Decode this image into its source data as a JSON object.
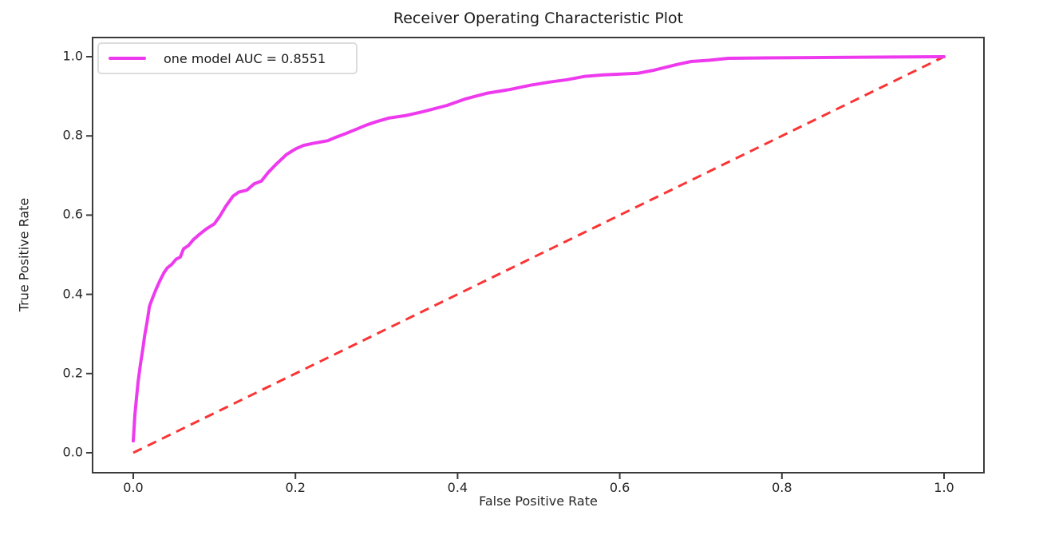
{
  "title": "Receiver Operating Characteristic Plot",
  "axes": {
    "xlabel": "False Positive Rate",
    "ylabel": "True Positive Rate",
    "xticks": {
      "values": [
        0.0,
        0.2,
        0.4,
        0.6,
        0.8,
        1.0
      ],
      "labels": [
        "0.0",
        "0.2",
        "0.4",
        "0.6",
        "0.8",
        "1.0"
      ]
    },
    "yticks": {
      "values": [
        0.0,
        0.2,
        0.4,
        0.6,
        0.8,
        1.0
      ],
      "labels": [
        "0.0",
        "0.2",
        "0.4",
        "0.6",
        "0.8",
        "1.0"
      ]
    }
  },
  "legend": {
    "label": "one model AUC = 0.8551",
    "position": "upper left"
  },
  "colors": {
    "roc_line": "#ee3aee",
    "chance_line": "#fa3434",
    "spine": "#3b3b3b",
    "text": "#262626",
    "background": "#ffffff"
  },
  "chart_data": {
    "type": "line",
    "title": "Receiver Operating Characteristic Plot",
    "xlabel": "False Positive Rate",
    "ylabel": "True Positive Rate",
    "xlim": [
      0.0,
      1.0
    ],
    "ylim": [
      0.0,
      1.0
    ],
    "grid": false,
    "legend_position": "upper left",
    "auc": 0.8551,
    "series": [
      {
        "name": "one model AUC = 0.8551",
        "color": "#ee3aee",
        "style": "solid",
        "line_width": 4,
        "points": [
          [
            0.0,
            0.03
          ],
          [
            0.001,
            0.062
          ],
          [
            0.002,
            0.095
          ],
          [
            0.004,
            0.14
          ],
          [
            0.006,
            0.18
          ],
          [
            0.009,
            0.225
          ],
          [
            0.012,
            0.265
          ],
          [
            0.014,
            0.295
          ],
          [
            0.017,
            0.33
          ],
          [
            0.02,
            0.37
          ],
          [
            0.024,
            0.392
          ],
          [
            0.028,
            0.412
          ],
          [
            0.033,
            0.435
          ],
          [
            0.038,
            0.455
          ],
          [
            0.042,
            0.467
          ],
          [
            0.047,
            0.475
          ],
          [
            0.053,
            0.489
          ],
          [
            0.058,
            0.494
          ],
          [
            0.062,
            0.515
          ],
          [
            0.068,
            0.523
          ],
          [
            0.074,
            0.538
          ],
          [
            0.082,
            0.552
          ],
          [
            0.09,
            0.565
          ],
          [
            0.1,
            0.578
          ],
          [
            0.107,
            0.598
          ],
          [
            0.114,
            0.622
          ],
          [
            0.123,
            0.648
          ],
          [
            0.13,
            0.658
          ],
          [
            0.14,
            0.663
          ],
          [
            0.149,
            0.679
          ],
          [
            0.158,
            0.686
          ],
          [
            0.167,
            0.709
          ],
          [
            0.177,
            0.73
          ],
          [
            0.189,
            0.753
          ],
          [
            0.2,
            0.767
          ],
          [
            0.21,
            0.776
          ],
          [
            0.224,
            0.782
          ],
          [
            0.24,
            0.788
          ],
          [
            0.249,
            0.796
          ],
          [
            0.262,
            0.806
          ],
          [
            0.274,
            0.816
          ],
          [
            0.287,
            0.827
          ],
          [
            0.3,
            0.836
          ],
          [
            0.315,
            0.845
          ],
          [
            0.335,
            0.851
          ],
          [
            0.357,
            0.861
          ],
          [
            0.387,
            0.877
          ],
          [
            0.409,
            0.893
          ],
          [
            0.437,
            0.908
          ],
          [
            0.464,
            0.917
          ],
          [
            0.49,
            0.928
          ],
          [
            0.514,
            0.936
          ],
          [
            0.535,
            0.942
          ],
          [
            0.556,
            0.95
          ],
          [
            0.58,
            0.954
          ],
          [
            0.602,
            0.956
          ],
          [
            0.622,
            0.958
          ],
          [
            0.64,
            0.965
          ],
          [
            0.654,
            0.972
          ],
          [
            0.67,
            0.98
          ],
          [
            0.688,
            0.988
          ],
          [
            0.71,
            0.991
          ],
          [
            0.734,
            0.996
          ],
          [
            0.78,
            0.997
          ],
          [
            0.85,
            0.998
          ],
          [
            0.92,
            0.999
          ],
          [
            1.0,
            1.0
          ]
        ]
      },
      {
        "name": "chance diagonal",
        "color": "#fa3434",
        "style": "dashed",
        "line_width": 3,
        "points": [
          [
            0.0,
            0.0
          ],
          [
            1.0,
            1.0
          ]
        ]
      }
    ]
  }
}
